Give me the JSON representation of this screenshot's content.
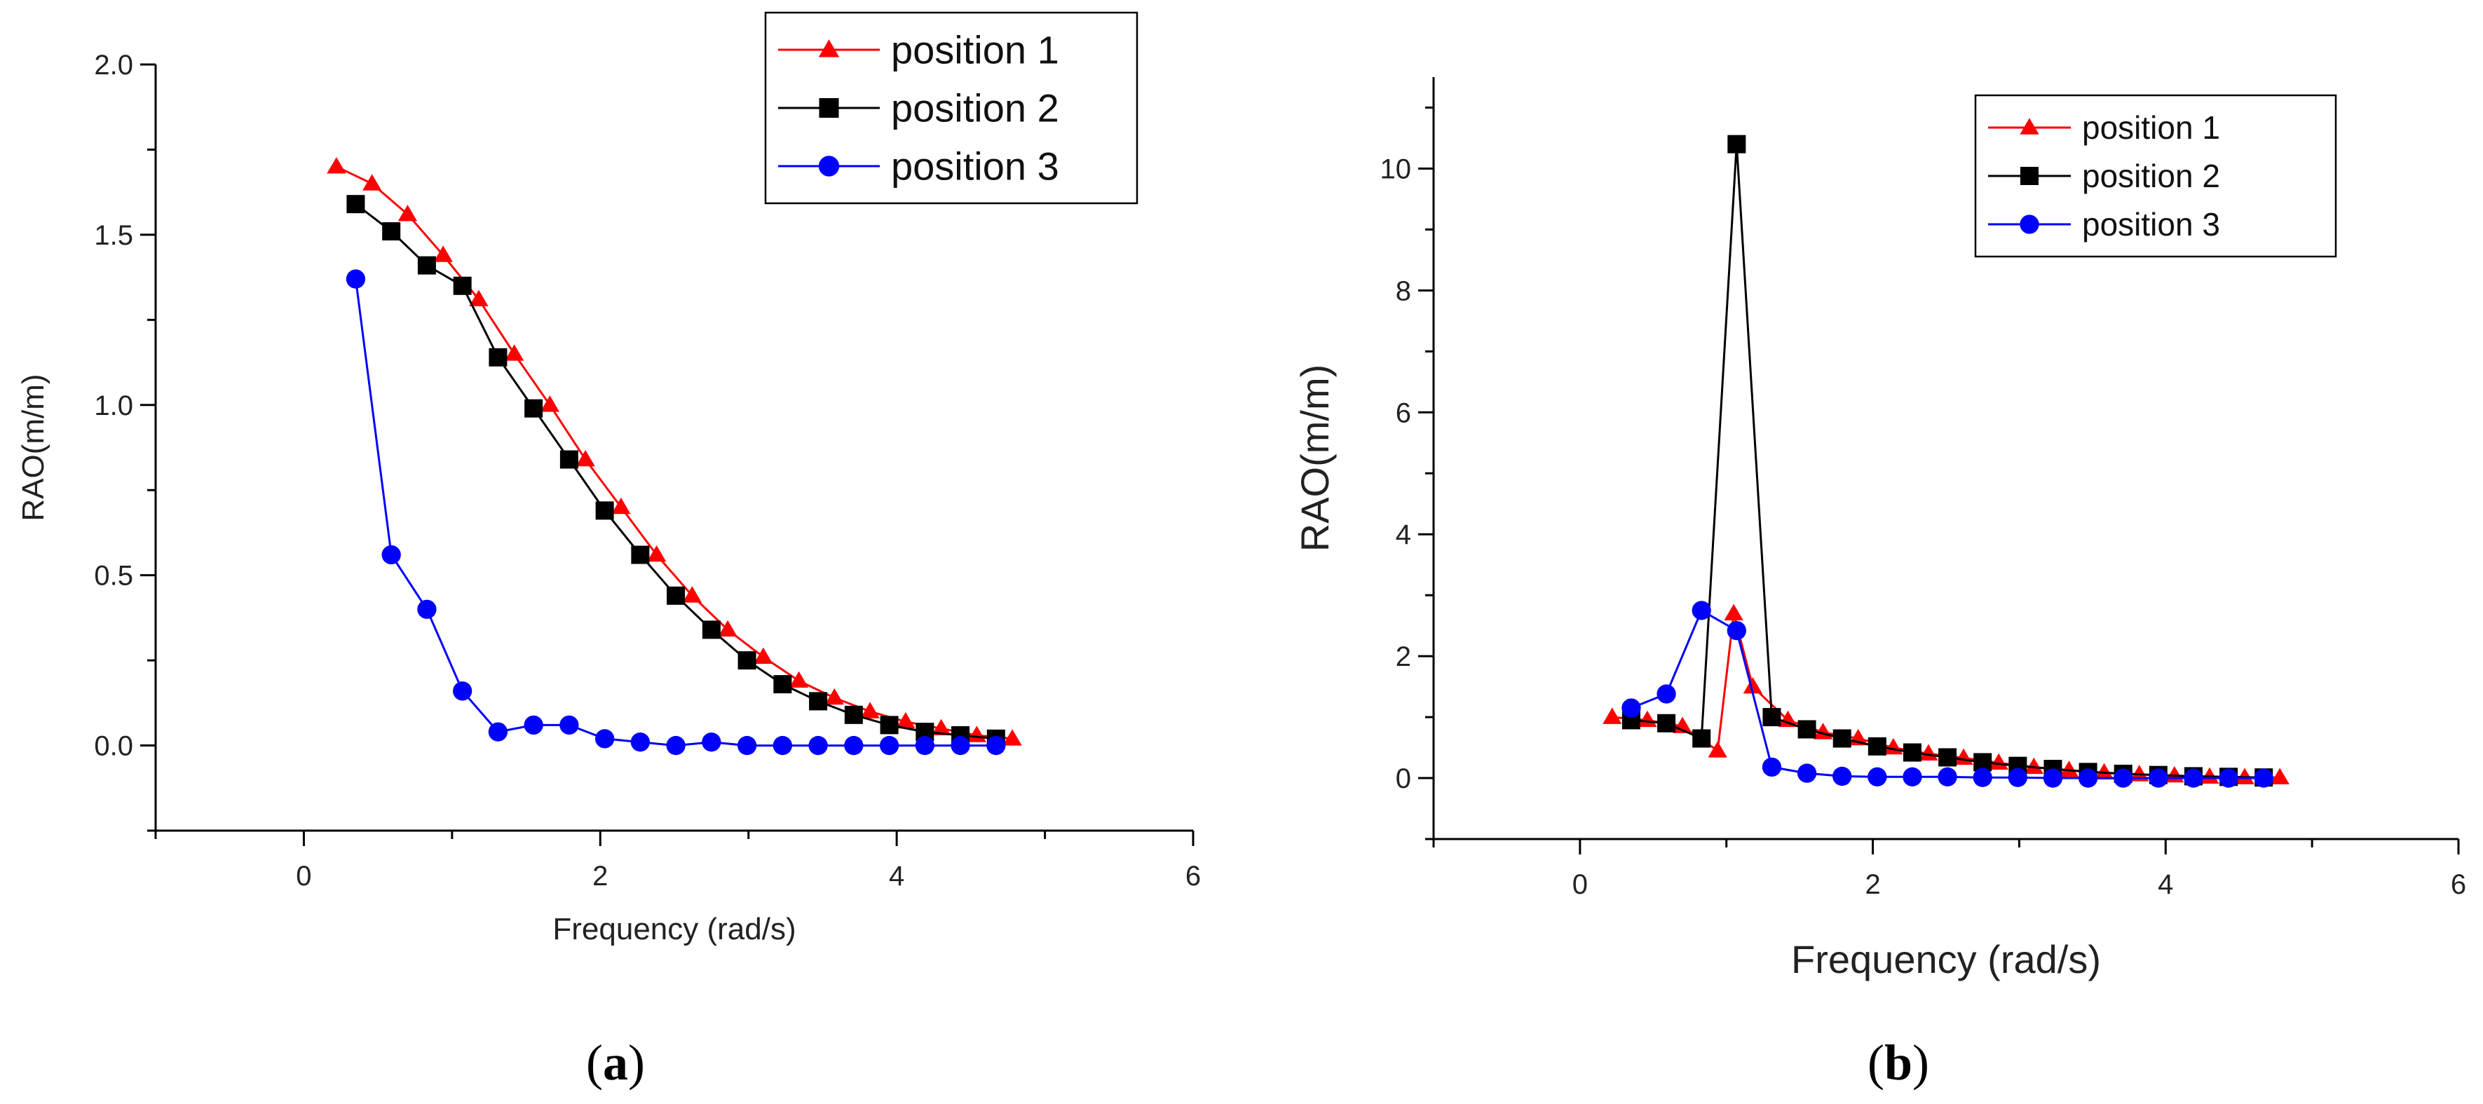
{
  "colors": {
    "position_1": "#ff0000",
    "position_2": "#000000",
    "position_3": "#0000ff"
  },
  "panel_labels": [
    {
      "open": "(",
      "letter": "a",
      "close": ")"
    },
    {
      "open": "(",
      "letter": "b",
      "close": ")"
    }
  ],
  "chart_data": [
    {
      "type": "line",
      "panel": "a",
      "title": "",
      "xlabel": "Frequency (rad/s)",
      "ylabel": "RAO(m/m)",
      "xlim": [
        -1,
        6
      ],
      "ylim": [
        -0.25,
        2.0
      ],
      "xticks": [
        0,
        2,
        4,
        6
      ],
      "xtick_labels": [
        "0",
        "2",
        "4",
        "6"
      ],
      "yticks": [
        0.0,
        0.5,
        1.0,
        1.5,
        2.0
      ],
      "ytick_labels": [
        "0.0",
        "0.5",
        "1.0",
        "1.5",
        "2.0"
      ],
      "legend": "top-right",
      "series": [
        {
          "name": "position 1",
          "marker": "triangle",
          "x": [
            0.22,
            0.46,
            0.7,
            0.94,
            1.18,
            1.42,
            1.66,
            1.9,
            2.14,
            2.38,
            2.62,
            2.86,
            3.1,
            3.34,
            3.58,
            3.82,
            4.06,
            4.3,
            4.54,
            4.78
          ],
          "y": [
            1.7,
            1.65,
            1.56,
            1.44,
            1.31,
            1.15,
            1.0,
            0.84,
            0.7,
            0.56,
            0.44,
            0.34,
            0.26,
            0.19,
            0.14,
            0.1,
            0.07,
            0.05,
            0.03,
            0.02
          ]
        },
        {
          "name": "position 2",
          "marker": "square",
          "x": [
            0.35,
            0.59,
            0.83,
            1.07,
            1.31,
            1.55,
            1.79,
            2.03,
            2.27,
            2.51,
            2.75,
            2.99,
            3.23,
            3.47,
            3.71,
            3.95,
            4.19,
            4.43,
            4.67
          ],
          "y": [
            1.59,
            1.51,
            1.41,
            1.35,
            1.14,
            0.99,
            0.84,
            0.69,
            0.56,
            0.44,
            0.34,
            0.25,
            0.18,
            0.13,
            0.09,
            0.06,
            0.04,
            0.03,
            0.02
          ]
        },
        {
          "name": "position 3",
          "marker": "circle",
          "x": [
            0.35,
            0.59,
            0.83,
            1.07,
            1.31,
            1.55,
            1.79,
            2.03,
            2.27,
            2.51,
            2.75,
            2.99,
            3.23,
            3.47,
            3.71,
            3.95,
            4.19,
            4.43,
            4.67
          ],
          "y": [
            1.37,
            0.56,
            0.4,
            0.16,
            0.04,
            0.06,
            0.06,
            0.02,
            0.01,
            0.0,
            0.01,
            0.0,
            0.0,
            0.0,
            0.0,
            0.0,
            0.0,
            0.0,
            0.0
          ]
        }
      ]
    },
    {
      "type": "line",
      "panel": "b",
      "title": "",
      "xlabel": "Frequency (rad/s)",
      "ylabel": "RAO(m/m)",
      "xlim": [
        -1,
        6
      ],
      "ylim": [
        -1,
        11.5
      ],
      "xticks": [
        0,
        2,
        4,
        6
      ],
      "xtick_labels": [
        "0",
        "2",
        "4",
        "6"
      ],
      "yticks": [
        0,
        2,
        4,
        6,
        8,
        10
      ],
      "ytick_labels": [
        "0",
        "2",
        "4",
        "6",
        "8",
        "10"
      ],
      "legend": "top-right",
      "series": [
        {
          "name": "position 1",
          "marker": "triangle",
          "x": [
            0.22,
            0.46,
            0.7,
            0.94,
            1.05,
            1.18,
            1.42,
            1.66,
            1.9,
            2.14,
            2.38,
            2.62,
            2.86,
            3.1,
            3.34,
            3.58,
            3.82,
            4.06,
            4.3,
            4.54,
            4.78
          ],
          "y": [
            1.0,
            0.95,
            0.85,
            0.45,
            2.7,
            1.5,
            0.95,
            0.75,
            0.65,
            0.5,
            0.4,
            0.33,
            0.25,
            0.18,
            0.13,
            0.09,
            0.06,
            0.04,
            0.02,
            0.01,
            0.01
          ]
        },
        {
          "name": "position 2",
          "marker": "square",
          "x": [
            0.35,
            0.59,
            0.83,
            1.07,
            1.31,
            1.55,
            1.79,
            2.03,
            2.27,
            2.51,
            2.75,
            2.99,
            3.23,
            3.47,
            3.71,
            3.95,
            4.19,
            4.43,
            4.67
          ],
          "y": [
            0.95,
            0.9,
            0.65,
            10.4,
            1.0,
            0.8,
            0.65,
            0.52,
            0.42,
            0.34,
            0.26,
            0.2,
            0.15,
            0.1,
            0.07,
            0.05,
            0.03,
            0.02,
            0.01
          ]
        },
        {
          "name": "position 3",
          "marker": "circle",
          "x": [
            0.35,
            0.59,
            0.83,
            1.07,
            1.31,
            1.55,
            1.79,
            2.03,
            2.27,
            2.51,
            2.75,
            2.99,
            3.23,
            3.47,
            3.71,
            3.95,
            4.19,
            4.43,
            4.67
          ],
          "y": [
            1.15,
            1.38,
            2.75,
            2.42,
            0.18,
            0.08,
            0.03,
            0.02,
            0.02,
            0.02,
            0.01,
            0.01,
            0.0,
            0.0,
            0.0,
            0.0,
            0.0,
            0.0,
            0.0
          ]
        }
      ]
    }
  ]
}
